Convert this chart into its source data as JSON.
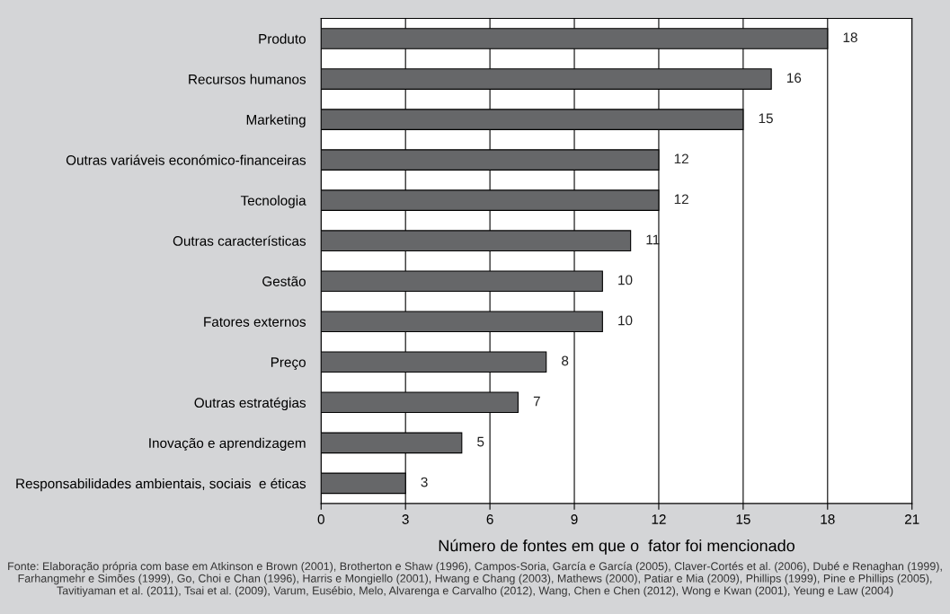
{
  "chart_data": {
    "type": "bar",
    "orientation": "horizontal",
    "categories": [
      "Produto",
      "Recursos humanos",
      "Marketing",
      "Outras variáveis económico-financeiras",
      "Tecnologia",
      "Outras características",
      "Gestão",
      "Fatores externos",
      "Preço",
      "Outras estratégias",
      "Inovação e aprendizagem",
      "Responsabilidades ambientais, sociais  e éticas"
    ],
    "values": [
      18,
      16,
      15,
      12,
      12,
      11,
      10,
      10,
      8,
      7,
      5,
      3
    ],
    "color": "#666769",
    "xlabel": "Número de fontes em que o  fator foi mencionado",
    "xlim": [
      0,
      21
    ],
    "xticks": [
      0,
      3,
      6,
      9,
      12,
      15,
      18,
      21
    ],
    "grid": "x",
    "data_labels": true,
    "annotations": [
      "Fonte: Elaboração própria com base em Atkinson e Brown (2001), Brotherton e Shaw (1996), Campos-Soria, García e García (2005), Claver-Cortés et al. (2006), Dubé e Renaghan (1999), Farhangmehr e Simões (1999), Go, Choi e Chan (1996), Harris e Mongiello (2001), Hwang e Chang (2003), Mathews (2000), Patiar e Mia (2009), Phillips (1999), Pine e Phillips (2005), Tavitiyaman et al. (2011), Tsai et al. (2009), Varum, Eusébio, Melo, Alvarenga e Carvalho (2012), Wang, Chen e Chen (2012), Wong e Kwan (2001), Yeung e Law (2004)"
    ]
  }
}
